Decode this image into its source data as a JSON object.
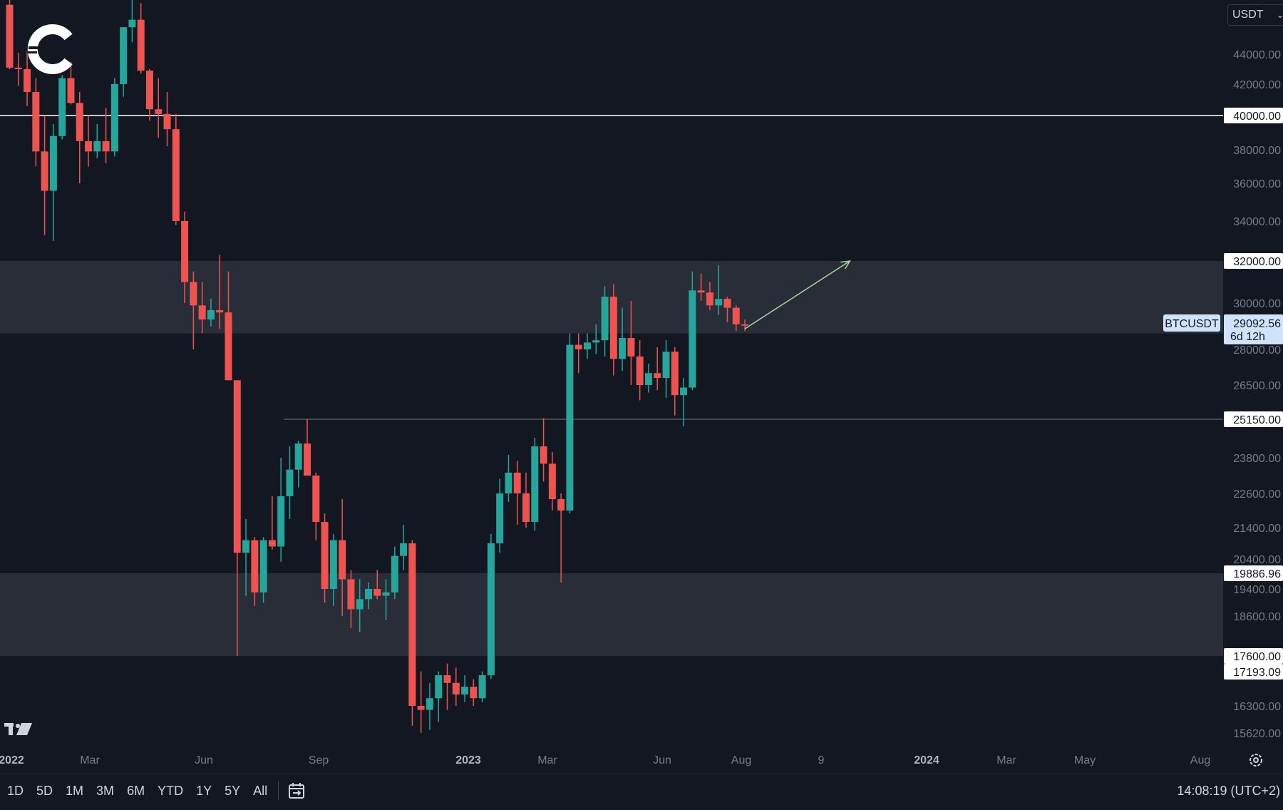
{
  "symbol": "BTCUSDT",
  "currency": "USDT",
  "current_price": "29092.56",
  "countdown": "6d 12h",
  "clock": "14:08:19 (UTC+2)",
  "ranges": [
    "1D",
    "5D",
    "1M",
    "3M",
    "6M",
    "YTD",
    "1Y",
    "5Y",
    "All"
  ],
  "colors": {
    "background": "#131722",
    "up": "#26a69a",
    "down": "#ef5350",
    "zone": "#2a2e39",
    "price_tag": "#cfe4fb",
    "arrow": "#a5d6a7"
  },
  "chart_data": {
    "type": "candlestick",
    "price_axis_ticks": [
      "44000.00",
      "42000.00",
      "38000.00",
      "36000.00",
      "34000.00",
      "30000.00",
      "28000.00",
      "26500.00",
      "23800.00",
      "22600.00",
      "21400.00",
      "20400.00",
      "19400.00",
      "18600.00",
      "16300.00",
      "15620.00"
    ],
    "time_axis_ticks": [
      {
        "label": "2022",
        "year": true
      },
      {
        "label": "Mar",
        "year": false
      },
      {
        "label": "Jun",
        "year": false
      },
      {
        "label": "Sep",
        "year": false
      },
      {
        "label": "2023",
        "year": true
      },
      {
        "label": "Mar",
        "year": false
      },
      {
        "label": "Jun",
        "year": false
      },
      {
        "label": "Aug",
        "year": false
      },
      {
        "label": "9",
        "year": false
      },
      {
        "label": "2024",
        "year": true
      },
      {
        "label": "Mar",
        "year": false
      },
      {
        "label": "May",
        "year": false
      },
      {
        "label": "Aug",
        "year": false
      }
    ],
    "horizontal_levels": [
      {
        "value": 40000,
        "label": "40000.00"
      },
      {
        "value": 32000,
        "label": "32000.00"
      },
      {
        "value": 25150,
        "label": "25150.00"
      },
      {
        "value": 19886.96,
        "label": "19886.96"
      },
      {
        "value": 17600,
        "label": "17600.00"
      },
      {
        "value": 17193.09,
        "label": "17193.09"
      }
    ],
    "zones": [
      {
        "from": 28700,
        "to": 32000
      },
      {
        "from": 17600,
        "to": 19886.96
      }
    ],
    "candles": [
      {
        "o": 47300,
        "h": 47900,
        "l": 43000,
        "c": 43100
      },
      {
        "o": 43100,
        "h": 44100,
        "l": 41900,
        "c": 43000
      },
      {
        "o": 43000,
        "h": 44200,
        "l": 40600,
        "c": 41500
      },
      {
        "o": 41500,
        "h": 42400,
        "l": 37000,
        "c": 37900
      },
      {
        "o": 37900,
        "h": 40000,
        "l": 33300,
        "c": 35600
      },
      {
        "o": 35600,
        "h": 39500,
        "l": 33000,
        "c": 38800
      },
      {
        "o": 38800,
        "h": 42600,
        "l": 38600,
        "c": 42400
      },
      {
        "o": 42400,
        "h": 43500,
        "l": 40700,
        "c": 40800
      },
      {
        "o": 40800,
        "h": 41500,
        "l": 36000,
        "c": 38500
      },
      {
        "o": 38500,
        "h": 40000,
        "l": 37000,
        "c": 37900
      },
      {
        "o": 37900,
        "h": 39500,
        "l": 37500,
        "c": 38500
      },
      {
        "o": 38500,
        "h": 40500,
        "l": 37200,
        "c": 37900
      },
      {
        "o": 37900,
        "h": 42400,
        "l": 37600,
        "c": 42000
      },
      {
        "o": 42000,
        "h": 45800,
        "l": 41200,
        "c": 45800
      },
      {
        "o": 45800,
        "h": 48000,
        "l": 44800,
        "c": 46300
      },
      {
        "o": 46300,
        "h": 47400,
        "l": 42700,
        "c": 42900
      },
      {
        "o": 42900,
        "h": 43000,
        "l": 39700,
        "c": 40400
      },
      {
        "o": 40400,
        "h": 42400,
        "l": 38700,
        "c": 40100
      },
      {
        "o": 40100,
        "h": 41500,
        "l": 38200,
        "c": 39200
      },
      {
        "o": 39200,
        "h": 40100,
        "l": 33800,
        "c": 34000
      },
      {
        "o": 34000,
        "h": 34500,
        "l": 30000,
        "c": 31000
      },
      {
        "o": 31000,
        "h": 31500,
        "l": 28000,
        "c": 29900
      },
      {
        "o": 29900,
        "h": 31000,
        "l": 28700,
        "c": 29300
      },
      {
        "o": 29300,
        "h": 30200,
        "l": 29000,
        "c": 29700
      },
      {
        "o": 29700,
        "h": 32300,
        "l": 28900,
        "c": 29600
      },
      {
        "o": 29600,
        "h": 31500,
        "l": 26700,
        "c": 26700
      },
      {
        "o": 26700,
        "h": 26700,
        "l": 17600,
        "c": 20600
      },
      {
        "o": 20600,
        "h": 21700,
        "l": 19200,
        "c": 21000
      },
      {
        "o": 21000,
        "h": 21100,
        "l": 18900,
        "c": 19300
      },
      {
        "o": 19300,
        "h": 21100,
        "l": 19000,
        "c": 21000
      },
      {
        "o": 21000,
        "h": 22500,
        "l": 20700,
        "c": 20800
      },
      {
        "o": 20800,
        "h": 23800,
        "l": 20300,
        "c": 22500
      },
      {
        "o": 22500,
        "h": 24200,
        "l": 21700,
        "c": 23400
      },
      {
        "o": 23400,
        "h": 24400,
        "l": 22800,
        "c": 24300
      },
      {
        "o": 24300,
        "h": 25150,
        "l": 23500,
        "c": 23200
      },
      {
        "o": 23200,
        "h": 23300,
        "l": 21000,
        "c": 21600
      },
      {
        "o": 21600,
        "h": 21900,
        "l": 19000,
        "c": 19400
      },
      {
        "o": 19400,
        "h": 21200,
        "l": 18900,
        "c": 21000
      },
      {
        "o": 21000,
        "h": 22400,
        "l": 18600,
        "c": 19700
      },
      {
        "o": 19700,
        "h": 20000,
        "l": 18300,
        "c": 18800
      },
      {
        "o": 18800,
        "h": 19700,
        "l": 18200,
        "c": 19100
      },
      {
        "o": 19100,
        "h": 19600,
        "l": 18800,
        "c": 19400
      },
      {
        "o": 19400,
        "h": 20000,
        "l": 19100,
        "c": 19200
      },
      {
        "o": 19200,
        "h": 19700,
        "l": 18500,
        "c": 19300
      },
      {
        "o": 19300,
        "h": 20800,
        "l": 19100,
        "c": 20500
      },
      {
        "o": 20500,
        "h": 21500,
        "l": 20000,
        "c": 20900
      },
      {
        "o": 20900,
        "h": 21000,
        "l": 15800,
        "c": 16300
      },
      {
        "o": 16300,
        "h": 17200,
        "l": 15500,
        "c": 16200
      },
      {
        "o": 16200,
        "h": 16900,
        "l": 15700,
        "c": 16500
      },
      {
        "o": 16500,
        "h": 17200,
        "l": 15900,
        "c": 17100
      },
      {
        "o": 17100,
        "h": 17400,
        "l": 16200,
        "c": 16900
      },
      {
        "o": 16900,
        "h": 17300,
        "l": 16300,
        "c": 16600
      },
      {
        "o": 16600,
        "h": 17100,
        "l": 16400,
        "c": 16800
      },
      {
        "o": 16800,
        "h": 17000,
        "l": 16300,
        "c": 16500
      },
      {
        "o": 16500,
        "h": 17200,
        "l": 16400,
        "c": 17100
      },
      {
        "o": 17100,
        "h": 21200,
        "l": 17000,
        "c": 20900
      },
      {
        "o": 20900,
        "h": 23100,
        "l": 20600,
        "c": 22600
      },
      {
        "o": 22600,
        "h": 23900,
        "l": 22300,
        "c": 23300
      },
      {
        "o": 23300,
        "h": 23700,
        "l": 21500,
        "c": 22600
      },
      {
        "o": 22600,
        "h": 23300,
        "l": 21400,
        "c": 21600
      },
      {
        "o": 21600,
        "h": 24500,
        "l": 21300,
        "c": 24200
      },
      {
        "o": 24200,
        "h": 25200,
        "l": 23000,
        "c": 23600
      },
      {
        "o": 23600,
        "h": 24000,
        "l": 22000,
        "c": 22400
      },
      {
        "o": 22400,
        "h": 22600,
        "l": 19600,
        "c": 22000
      },
      {
        "o": 22000,
        "h": 28700,
        "l": 21900,
        "c": 28200
      },
      {
        "o": 28200,
        "h": 28700,
        "l": 27000,
        "c": 28000
      },
      {
        "o": 28000,
        "h": 28700,
        "l": 27600,
        "c": 28300
      },
      {
        "o": 28300,
        "h": 29100,
        "l": 27800,
        "c": 28400
      },
      {
        "o": 28400,
        "h": 30800,
        "l": 27700,
        "c": 30300
      },
      {
        "o": 30300,
        "h": 30900,
        "l": 26900,
        "c": 27600
      },
      {
        "o": 27600,
        "h": 29800,
        "l": 27100,
        "c": 28500
      },
      {
        "o": 28500,
        "h": 30100,
        "l": 26500,
        "c": 27700
      },
      {
        "o": 27700,
        "h": 28400,
        "l": 25900,
        "c": 26500
      },
      {
        "o": 26500,
        "h": 27400,
        "l": 26200,
        "c": 27000
      },
      {
        "o": 27000,
        "h": 28100,
        "l": 26300,
        "c": 26800
      },
      {
        "o": 26800,
        "h": 28400,
        "l": 26000,
        "c": 27900
      },
      {
        "o": 27900,
        "h": 28100,
        "l": 25300,
        "c": 26100
      },
      {
        "o": 26100,
        "h": 26800,
        "l": 24900,
        "c": 26400
      },
      {
        "o": 26400,
        "h": 31500,
        "l": 26300,
        "c": 30600
      },
      {
        "o": 30600,
        "h": 31400,
        "l": 30100,
        "c": 30500
      },
      {
        "o": 30500,
        "h": 31000,
        "l": 29700,
        "c": 29900
      },
      {
        "o": 29900,
        "h": 31800,
        "l": 29500,
        "c": 30200
      },
      {
        "o": 30200,
        "h": 30300,
        "l": 29200,
        "c": 29800
      },
      {
        "o": 29800,
        "h": 29900,
        "l": 28800,
        "c": 29100
      },
      {
        "o": 29100,
        "h": 29300,
        "l": 28800,
        "c": 29092.56
      }
    ],
    "arrow": {
      "from_index": 84,
      "from_value": 28900,
      "to_index": 96,
      "to_value": 32000
    },
    "grid": false,
    "legend": "none"
  }
}
